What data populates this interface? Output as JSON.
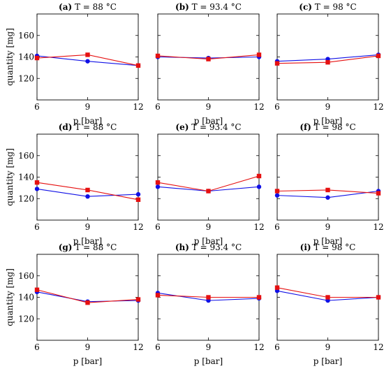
{
  "colors": {
    "blue": "#1010e6",
    "red": "#e61010",
    "axis": "#000000"
  },
  "shared_axis_labels": {
    "xlabel": "p [bar]",
    "ylabel": "quantity [mg]"
  },
  "chart_data": [
    {
      "type": "line",
      "title": "T = 88 °C",
      "panel": "(a)",
      "x": [
        6,
        9,
        12
      ],
      "xlim": [
        6,
        12
      ],
      "ylim": [
        100,
        180
      ],
      "xticks": [
        "6",
        "9",
        "12"
      ],
      "yticks": [
        "120",
        "140",
        "160"
      ],
      "series": [
        {
          "color": "blue",
          "marker": "circle",
          "values": [
            141,
            136,
            132
          ]
        },
        {
          "color": "red",
          "marker": "square",
          "values": [
            139,
            142,
            132
          ]
        }
      ]
    },
    {
      "type": "line",
      "title": "T = 93.4 °C",
      "panel": "(b)",
      "x": [
        6,
        9,
        12
      ],
      "xlim": [
        6,
        12
      ],
      "ylim": [
        100,
        180
      ],
      "xticks": [
        "6",
        "9",
        "12"
      ],
      "yticks": [
        "120",
        "140",
        "160"
      ],
      "series": [
        {
          "color": "blue",
          "marker": "circle",
          "values": [
            140,
            139,
            140
          ]
        },
        {
          "color": "red",
          "marker": "square",
          "values": [
            141,
            138,
            142
          ]
        }
      ]
    },
    {
      "type": "line",
      "title": "T = 98 °C",
      "panel": "(c)",
      "x": [
        6,
        9,
        12
      ],
      "xlim": [
        6,
        12
      ],
      "ylim": [
        100,
        180
      ],
      "xticks": [
        "6",
        "9",
        "12"
      ],
      "yticks": [
        "120",
        "140",
        "160"
      ],
      "series": [
        {
          "color": "blue",
          "marker": "circle",
          "values": [
            136,
            138,
            142
          ]
        },
        {
          "color": "red",
          "marker": "square",
          "values": [
            134,
            135,
            141
          ]
        }
      ]
    },
    {
      "type": "line",
      "title": "T = 88 °C",
      "panel": "(d)",
      "x": [
        6,
        9,
        12
      ],
      "xlim": [
        6,
        12
      ],
      "ylim": [
        100,
        180
      ],
      "xticks": [
        "6",
        "9",
        "12"
      ],
      "yticks": [
        "120",
        "140",
        "160"
      ],
      "series": [
        {
          "color": "blue",
          "marker": "circle",
          "values": [
            129,
            122,
            124
          ]
        },
        {
          "color": "red",
          "marker": "square",
          "values": [
            135,
            128,
            119
          ]
        }
      ]
    },
    {
      "type": "line",
      "title": "T = 93.4 °C",
      "panel": "(e)",
      "x": [
        6,
        9,
        12
      ],
      "xlim": [
        6,
        12
      ],
      "ylim": [
        100,
        180
      ],
      "xticks": [
        "6",
        "9",
        "12"
      ],
      "yticks": [
        "120",
        "140",
        "160"
      ],
      "series": [
        {
          "color": "blue",
          "marker": "circle",
          "values": [
            131,
            127,
            131
          ]
        },
        {
          "color": "red",
          "marker": "square",
          "values": [
            135,
            127,
            141
          ]
        }
      ]
    },
    {
      "type": "line",
      "title": "T = 98 °C",
      "panel": "(f)",
      "x": [
        6,
        9,
        12
      ],
      "xlim": [
        6,
        12
      ],
      "ylim": [
        100,
        180
      ],
      "xticks": [
        "6",
        "9",
        "12"
      ],
      "yticks": [
        "120",
        "140",
        "160"
      ],
      "series": [
        {
          "color": "blue",
          "marker": "circle",
          "values": [
            123,
            121,
            127
          ]
        },
        {
          "color": "red",
          "marker": "square",
          "values": [
            127,
            128,
            125
          ]
        }
      ]
    },
    {
      "type": "line",
      "title": "T = 88 °C",
      "panel": "(g)",
      "x": [
        6,
        9,
        12
      ],
      "xlim": [
        6,
        12
      ],
      "ylim": [
        100,
        180
      ],
      "xticks": [
        "6",
        "9",
        "12"
      ],
      "yticks": [
        "120",
        "140",
        "160"
      ],
      "series": [
        {
          "color": "blue",
          "marker": "circle",
          "values": [
            145,
            136,
            137
          ]
        },
        {
          "color": "red",
          "marker": "square",
          "values": [
            147,
            135,
            138
          ]
        }
      ]
    },
    {
      "type": "line",
      "title": "T = 93.4 °C",
      "panel": "(h)",
      "x": [
        6,
        9,
        12
      ],
      "xlim": [
        6,
        12
      ],
      "ylim": [
        100,
        180
      ],
      "xticks": [
        "6",
        "9",
        "12"
      ],
      "yticks": [
        "120",
        "140",
        "160"
      ],
      "series": [
        {
          "color": "blue",
          "marker": "circle",
          "values": [
            144,
            137,
            139
          ]
        },
        {
          "color": "red",
          "marker": "square",
          "values": [
            142,
            140,
            140
          ]
        }
      ]
    },
    {
      "type": "line",
      "title": "T = 98 °C",
      "panel": "(i)",
      "x": [
        6,
        9,
        12
      ],
      "xlim": [
        6,
        12
      ],
      "ylim": [
        100,
        180
      ],
      "xticks": [
        "6",
        "9",
        "12"
      ],
      "yticks": [
        "120",
        "140",
        "160"
      ],
      "series": [
        {
          "color": "blue",
          "marker": "circle",
          "values": [
            146,
            137,
            140
          ]
        },
        {
          "color": "red",
          "marker": "square",
          "values": [
            149,
            140,
            140
          ]
        }
      ]
    }
  ]
}
